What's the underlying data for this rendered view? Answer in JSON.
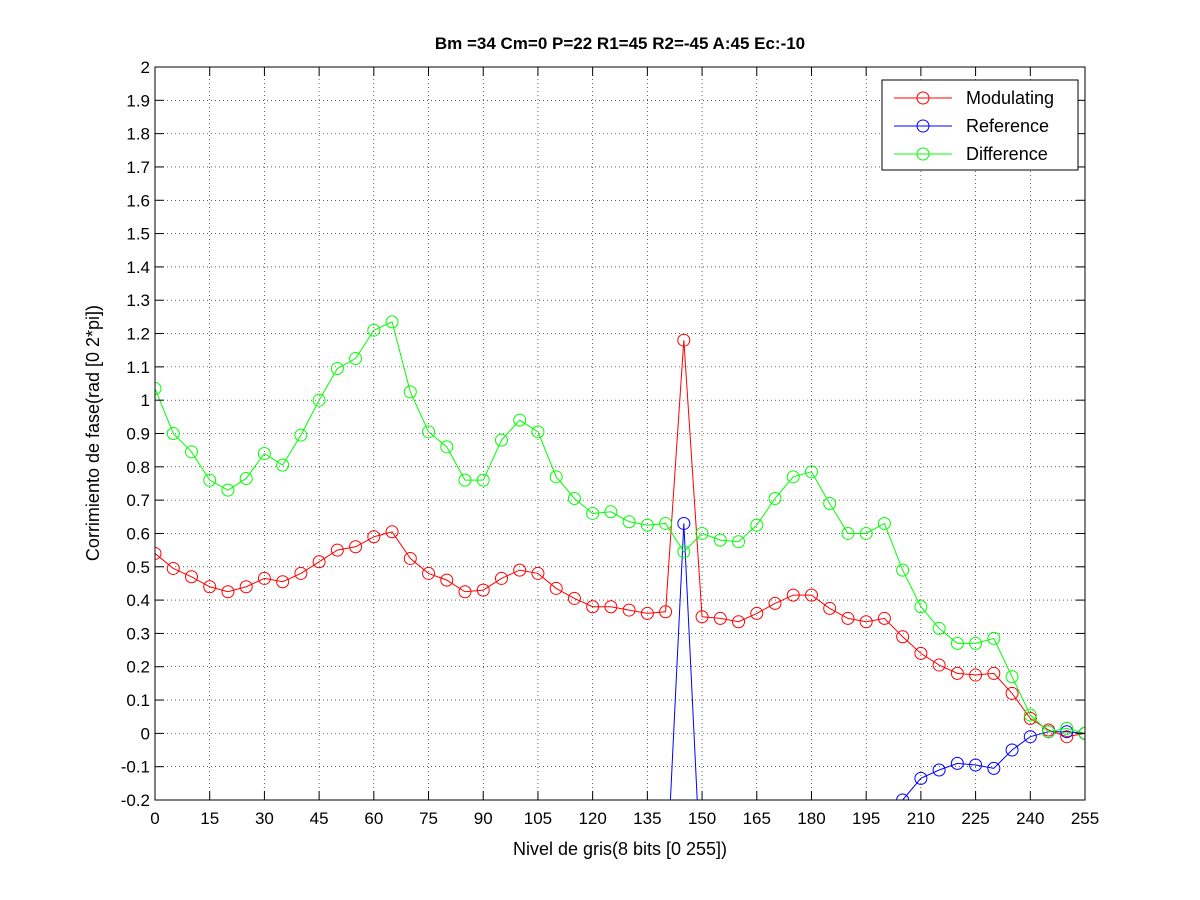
{
  "chart_data": {
    "type": "line",
    "title": "Bm =34  Cm=0  P=22  R1=45  R2=-45  A:45  Ec:-10",
    "xlabel": "Nivel de gris(8 bits [0 255])",
    "ylabel": "Corrimiento de fase(rad [0 2*pi])",
    "xlim": [
      0,
      255
    ],
    "ylim": [
      -0.2,
      2
    ],
    "xticks": [
      0,
      15,
      30,
      45,
      60,
      75,
      90,
      105,
      120,
      135,
      150,
      165,
      180,
      195,
      210,
      225,
      240,
      255
    ],
    "yticks": [
      -0.2,
      -0.1,
      0,
      0.1,
      0.2,
      0.3,
      0.4,
      0.5,
      0.6,
      0.7,
      0.8,
      0.9,
      1,
      1.1,
      1.2,
      1.3,
      1.4,
      1.5,
      1.6,
      1.7,
      1.8,
      1.9,
      2
    ],
    "ytick_labels": [
      "-0.2",
      "-0.1",
      "0",
      "0.1",
      "0.2",
      "0.3",
      "0.4",
      "0.5",
      "0.6",
      "0.7",
      "0.8",
      "0.9",
      "1",
      "1.1",
      "1.2",
      "1.3",
      "1.4",
      "1.5",
      "1.6",
      "1.7",
      "1.8",
      "1.9",
      "2"
    ],
    "grid": true,
    "legend_position": "top-right",
    "x": [
      0,
      5,
      10,
      15,
      20,
      25,
      30,
      35,
      40,
      45,
      50,
      55,
      60,
      65,
      70,
      75,
      80,
      85,
      90,
      95,
      100,
      105,
      110,
      115,
      120,
      125,
      130,
      135,
      140,
      145,
      150,
      155,
      160,
      165,
      170,
      175,
      180,
      185,
      190,
      195,
      200,
      205,
      210,
      215,
      220,
      225,
      230,
      235,
      240,
      245,
      250,
      255
    ],
    "series": [
      {
        "name": "Modulating",
        "color": "#ff0000",
        "values": [
          0.54,
          0.495,
          0.47,
          0.44,
          0.425,
          0.44,
          0.465,
          0.455,
          0.48,
          0.515,
          0.55,
          0.56,
          0.59,
          0.605,
          0.525,
          0.48,
          0.46,
          0.425,
          0.43,
          0.465,
          0.49,
          0.48,
          0.435,
          0.405,
          0.38,
          0.38,
          0.37,
          0.36,
          0.365,
          1.18,
          0.35,
          0.345,
          0.335,
          0.36,
          0.39,
          0.415,
          0.415,
          0.375,
          0.345,
          0.335,
          0.345,
          0.29,
          0.24,
          0.205,
          0.18,
          0.175,
          0.18,
          0.12,
          0.045,
          0.01,
          -0.01,
          0.0
        ]
      },
      {
        "name": "Reference",
        "color": "#0000ff",
        "values": [
          null,
          null,
          null,
          null,
          null,
          null,
          null,
          null,
          null,
          null,
          null,
          null,
          null,
          null,
          null,
          null,
          null,
          null,
          null,
          null,
          null,
          null,
          null,
          null,
          null,
          null,
          null,
          null,
          -0.5,
          0.63,
          -0.5,
          null,
          null,
          null,
          null,
          null,
          null,
          null,
          null,
          null,
          null,
          -0.2,
          -0.135,
          -0.11,
          -0.09,
          -0.095,
          -0.105,
          -0.05,
          -0.01,
          0.005,
          0.005,
          0.0
        ]
      },
      {
        "name": "Difference",
        "color": "#00ff00",
        "values": [
          1.035,
          0.9,
          0.845,
          0.76,
          0.73,
          0.765,
          0.84,
          0.805,
          0.895,
          1.0,
          1.095,
          1.125,
          1.21,
          1.235,
          1.025,
          0.905,
          0.86,
          0.76,
          0.76,
          0.88,
          0.94,
          0.905,
          0.77,
          0.705,
          0.66,
          0.665,
          0.635,
          0.625,
          0.63,
          0.545,
          0.6,
          0.58,
          0.575,
          0.625,
          0.705,
          0.77,
          0.785,
          0.69,
          0.6,
          0.6,
          0.63,
          0.49,
          0.38,
          0.315,
          0.27,
          0.27,
          0.285,
          0.17,
          0.055,
          0.005,
          0.015,
          0.0
        ]
      }
    ]
  }
}
